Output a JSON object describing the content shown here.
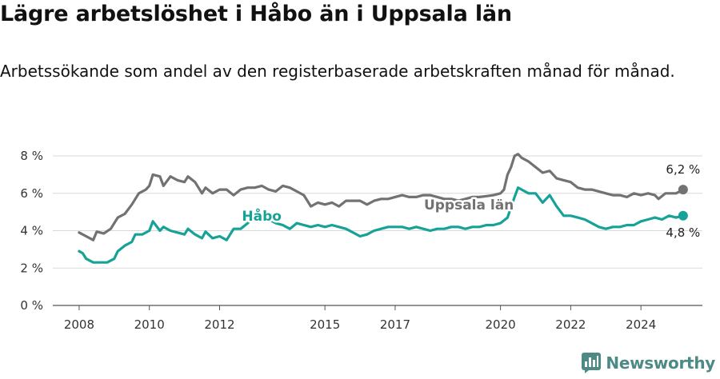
{
  "title": "Lägre arbetslöshet i Håbo än i Uppsala län",
  "subtitle": "Arbetssökande som andel av den registerbaserade arbetskraften månad för månad.",
  "brand": {
    "name": "Newsworthy",
    "color": "#4d8a86"
  },
  "chart_data": {
    "type": "line",
    "title": "Lägre arbetslöshet i Håbo än i Uppsala län",
    "subtitle": "Arbetssökande som andel av den registerbaserade arbetskraften månad för månad.",
    "xlabel": "",
    "ylabel": "",
    "x_ticks": [
      2008,
      2010,
      2012,
      2015,
      2017,
      2020,
      2022,
      2024
    ],
    "x_range": [
      2007.25,
      2025.75
    ],
    "y_ticks": [
      0,
      2,
      4,
      6,
      8
    ],
    "y_tick_labels": [
      "0 %",
      "2 %",
      "4 %",
      "6 %",
      "8 %"
    ],
    "ylim": [
      0,
      8.6
    ],
    "grid": true,
    "legend": "none (direct labels)",
    "series": [
      {
        "name": "Uppsala län",
        "color": "#727272",
        "end_label": "6,2 %",
        "x": [
          2008.0,
          2008.2,
          2008.4,
          2008.5,
          2008.7,
          2008.9,
          2009.1,
          2009.3,
          2009.5,
          2009.7,
          2009.9,
          2010.0,
          2010.1,
          2010.3,
          2010.4,
          2010.6,
          2010.8,
          2011.0,
          2011.1,
          2011.3,
          2011.5,
          2011.6,
          2011.8,
          2012.0,
          2012.2,
          2012.4,
          2012.6,
          2012.8,
          2013.0,
          2013.2,
          2013.4,
          2013.6,
          2013.8,
          2014.0,
          2014.2,
          2014.4,
          2014.6,
          2014.8,
          2015.0,
          2015.2,
          2015.4,
          2015.6,
          2015.8,
          2016.0,
          2016.2,
          2016.4,
          2016.6,
          2016.8,
          2017.0,
          2017.2,
          2017.4,
          2017.6,
          2017.8,
          2018.0,
          2018.2,
          2018.4,
          2018.6,
          2018.8,
          2019.0,
          2019.2,
          2019.4,
          2019.6,
          2019.8,
          2020.0,
          2020.1,
          2020.2,
          2020.3,
          2020.4,
          2020.5,
          2020.6,
          2020.8,
          2021.0,
          2021.2,
          2021.4,
          2021.6,
          2021.8,
          2022.0,
          2022.2,
          2022.4,
          2022.6,
          2022.8,
          2023.0,
          2023.2,
          2023.4,
          2023.6,
          2023.8,
          2024.0,
          2024.2,
          2024.4,
          2024.5,
          2024.7,
          2024.8,
          2025.0,
          2025.2
        ],
        "values": [
          3.9,
          3.7,
          3.5,
          3.95,
          3.85,
          4.1,
          4.7,
          4.9,
          5.4,
          6.0,
          6.2,
          6.4,
          7.0,
          6.9,
          6.4,
          6.9,
          6.7,
          6.6,
          6.9,
          6.6,
          6.0,
          6.3,
          6.0,
          6.2,
          6.2,
          5.9,
          6.2,
          6.3,
          6.3,
          6.4,
          6.2,
          6.1,
          6.4,
          6.3,
          6.1,
          5.9,
          5.3,
          5.5,
          5.4,
          5.5,
          5.3,
          5.6,
          5.6,
          5.6,
          5.4,
          5.6,
          5.7,
          5.7,
          5.8,
          5.9,
          5.8,
          5.8,
          5.9,
          5.9,
          5.8,
          5.7,
          5.7,
          5.6,
          5.7,
          5.8,
          5.8,
          5.85,
          5.9,
          6.0,
          6.2,
          7.0,
          7.4,
          8.0,
          8.1,
          7.9,
          7.7,
          7.4,
          7.1,
          7.2,
          6.8,
          6.7,
          6.6,
          6.3,
          6.2,
          6.2,
          6.1,
          6.0,
          5.9,
          5.9,
          5.8,
          6.0,
          5.9,
          6.0,
          5.9,
          5.7,
          6.0,
          6.0,
          6.0,
          6.2
        ]
      },
      {
        "name": "Håbo",
        "color": "#16a297",
        "end_label": "4,8 %",
        "x": [
          2008.0,
          2008.1,
          2008.2,
          2008.4,
          2008.6,
          2008.8,
          2009.0,
          2009.1,
          2009.3,
          2009.5,
          2009.6,
          2009.8,
          2010.0,
          2010.1,
          2010.3,
          2010.4,
          2010.6,
          2010.8,
          2011.0,
          2011.1,
          2011.3,
          2011.5,
          2011.6,
          2011.8,
          2012.0,
          2012.2,
          2012.4,
          2012.6,
          2012.8,
          2013.0,
          2013.2,
          2013.4,
          2013.6,
          2013.8,
          2014.0,
          2014.2,
          2014.4,
          2014.6,
          2014.8,
          2015.0,
          2015.2,
          2015.4,
          2015.6,
          2015.8,
          2016.0,
          2016.2,
          2016.4,
          2016.6,
          2016.8,
          2017.0,
          2017.2,
          2017.4,
          2017.6,
          2017.8,
          2018.0,
          2018.2,
          2018.4,
          2018.6,
          2018.8,
          2019.0,
          2019.2,
          2019.4,
          2019.6,
          2019.8,
          2020.0,
          2020.2,
          2020.4,
          2020.5,
          2020.6,
          2020.8,
          2021.0,
          2021.2,
          2021.4,
          2021.6,
          2021.8,
          2022.0,
          2022.2,
          2022.4,
          2022.6,
          2022.8,
          2023.0,
          2023.2,
          2023.4,
          2023.6,
          2023.8,
          2024.0,
          2024.2,
          2024.4,
          2024.6,
          2024.8,
          2025.0,
          2025.2
        ],
        "values": [
          2.9,
          2.8,
          2.5,
          2.3,
          2.3,
          2.3,
          2.5,
          2.9,
          3.2,
          3.4,
          3.8,
          3.8,
          4.0,
          4.5,
          4.0,
          4.2,
          4.0,
          3.9,
          3.8,
          4.1,
          3.8,
          3.6,
          3.95,
          3.6,
          3.7,
          3.5,
          4.1,
          4.1,
          4.4,
          4.8,
          4.7,
          4.6,
          4.4,
          4.3,
          4.1,
          4.4,
          4.3,
          4.2,
          4.3,
          4.2,
          4.3,
          4.2,
          4.1,
          3.9,
          3.7,
          3.8,
          4.0,
          4.1,
          4.2,
          4.2,
          4.2,
          4.1,
          4.2,
          4.1,
          4.0,
          4.1,
          4.1,
          4.2,
          4.2,
          4.1,
          4.2,
          4.2,
          4.3,
          4.3,
          4.4,
          4.7,
          5.8,
          6.3,
          6.2,
          6.0,
          6.0,
          5.5,
          5.9,
          5.3,
          4.8,
          4.8,
          4.7,
          4.6,
          4.4,
          4.2,
          4.1,
          4.2,
          4.2,
          4.3,
          4.3,
          4.5,
          4.6,
          4.7,
          4.6,
          4.8,
          4.7,
          4.8
        ]
      }
    ]
  }
}
